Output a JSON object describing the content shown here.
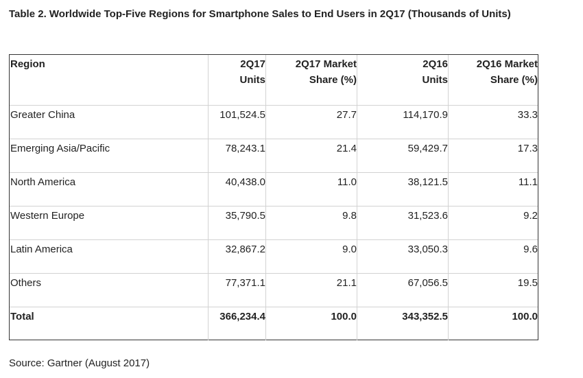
{
  "title": "Table 2. Worldwide Top-Five Regions for Smartphone Sales to End Users in 2Q17 (Thousands of Units)",
  "table": {
    "headers": [
      {
        "line1": "Region",
        "line2": ""
      },
      {
        "line1": "2Q17",
        "line2": "Units"
      },
      {
        "line1": "2Q17 Market",
        "line2": "Share (%)"
      },
      {
        "line1": "2Q16",
        "line2": "Units"
      },
      {
        "line1": "2Q16 Market",
        "line2": "Share (%)"
      }
    ],
    "rows": [
      [
        "Greater China",
        "101,524.5",
        "27.7",
        "114,170.9",
        "33.3"
      ],
      [
        "Emerging Asia/Pacific",
        "78,243.1",
        "21.4",
        "59,429.7",
        "17.3"
      ],
      [
        "North America",
        "40,438.0",
        "11.0",
        "38,121.5",
        "11.1"
      ],
      [
        "Western Europe",
        "35,790.5",
        "9.8",
        "31,523.6",
        "9.2"
      ],
      [
        "Latin America",
        "32,867.2",
        "9.0",
        "33,050.3",
        "9.6"
      ],
      [
        "Others",
        "77,371.1",
        "21.1",
        "67,056.5",
        "19.5"
      ],
      [
        "Total",
        "366,234.4",
        "100.0",
        "343,352.5",
        "100.0"
      ]
    ]
  },
  "source": "Source: Gartner (August 2017)"
}
